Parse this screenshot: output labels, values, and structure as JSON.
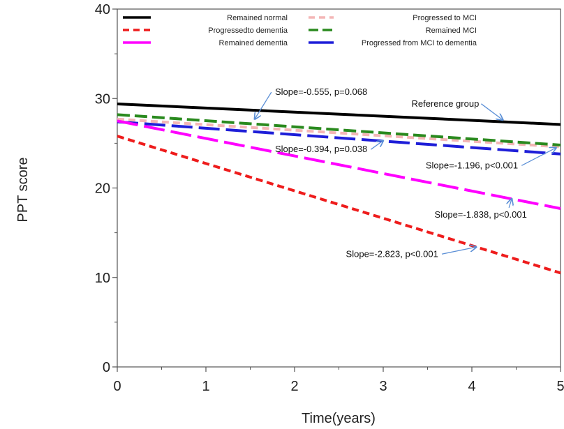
{
  "chart_data": {
    "type": "line",
    "xlabel": "Time(years)",
    "ylabel": "PPT score",
    "xlim": [
      0,
      5
    ],
    "ylim": [
      0,
      40
    ],
    "xticks": [
      0,
      1,
      2,
      3,
      4,
      5
    ],
    "yticks": [
      0,
      10,
      20,
      30,
      40
    ],
    "grid": false,
    "legend_position": "top",
    "series": [
      {
        "name": "Remained normal",
        "color": "#000000",
        "dash": "solid",
        "x": [
          0,
          5
        ],
        "y": [
          29.4,
          27.1
        ]
      },
      {
        "name": "Progressed to MCI",
        "color": "#f4b6b6",
        "dash": "dashed-short",
        "x": [
          0,
          5
        ],
        "y": [
          27.7,
          24.6
        ]
      },
      {
        "name": "Progressedto dementia",
        "color": "#ee1c1c",
        "dash": "dashed-short",
        "x": [
          0,
          5
        ],
        "y": [
          25.8,
          10.5
        ]
      },
      {
        "name": "Remained MCI",
        "color": "#2a8a1e",
        "dash": "dashed-medium",
        "x": [
          0,
          5
        ],
        "y": [
          28.2,
          24.8
        ]
      },
      {
        "name": "Remained dementia",
        "color": "#ff00ff",
        "dash": "dashed-long",
        "x": [
          0,
          5
        ],
        "y": [
          27.5,
          17.7
        ]
      },
      {
        "name": "Progressed from MCI to dementia",
        "color": "#1e1ed8",
        "dash": "dashed-long",
        "x": [
          0,
          5
        ],
        "y": [
          27.4,
          23.8
        ]
      }
    ],
    "annotations": [
      {
        "text": "Slope=-0.555, p=0.068",
        "label_at": [
          2.3,
          30.4
        ],
        "arrow_to": [
          1.55,
          27.7
        ]
      },
      {
        "text": "Reference group",
        "label_at": [
          3.7,
          29.1
        ],
        "arrow_to": [
          4.35,
          27.6
        ]
      },
      {
        "text": "Slope=-0.394, p=0.038",
        "label_at": [
          2.3,
          24.0
        ],
        "arrow_to": [
          3.0,
          25.3
        ]
      },
      {
        "text": "Slope=-1.196, p<0.001",
        "label_at": [
          4.0,
          22.2
        ],
        "arrow_to": [
          4.95,
          24.5
        ]
      },
      {
        "text": "Slope=-1.838, p<0.001",
        "label_at": [
          4.1,
          16.7
        ],
        "arrow_to": [
          4.45,
          18.8
        ]
      },
      {
        "text": "Slope=-2.823, p<0.001",
        "label_at": [
          3.1,
          12.3
        ],
        "arrow_to": [
          4.05,
          13.4
        ]
      }
    ]
  }
}
